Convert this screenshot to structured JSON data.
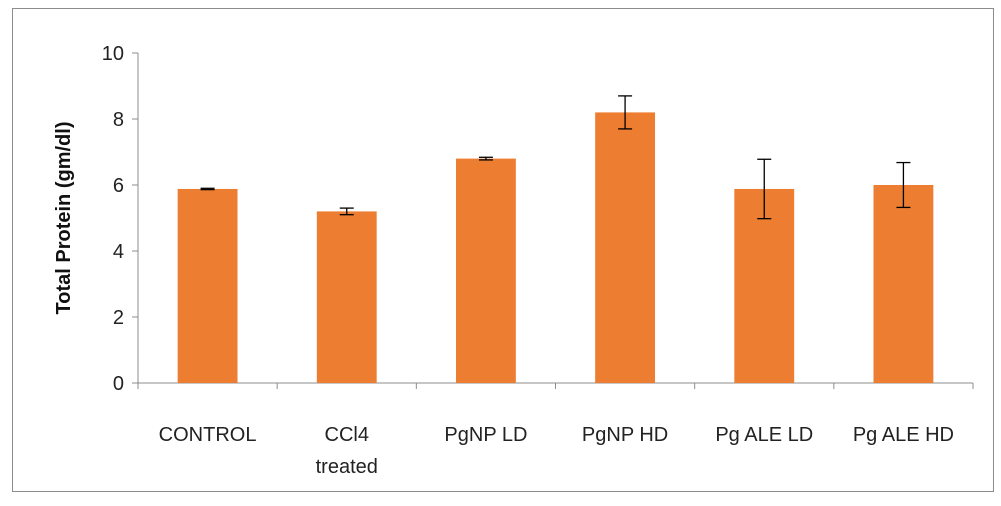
{
  "chart_data": {
    "type": "bar",
    "title": "",
    "xlabel": "",
    "ylabel": "Total Protein (gm/dl)",
    "ylim": [
      0,
      10
    ],
    "yticks": [
      0,
      2,
      4,
      6,
      8,
      10
    ],
    "grid": false,
    "legend": "none",
    "bar_color": "#ED7D31",
    "categories": [
      [
        "CONTROL"
      ],
      [
        "CCl4",
        "treated"
      ],
      [
        "PgNP LD"
      ],
      [
        "PgNP HD"
      ],
      [
        "Pg ALE LD"
      ],
      [
        "Pg ALE HD"
      ]
    ],
    "values": [
      5.88,
      5.2,
      6.8,
      8.2,
      5.88,
      6.0
    ],
    "errors": [
      0.02,
      0.1,
      0.04,
      0.5,
      0.9,
      0.68
    ]
  }
}
